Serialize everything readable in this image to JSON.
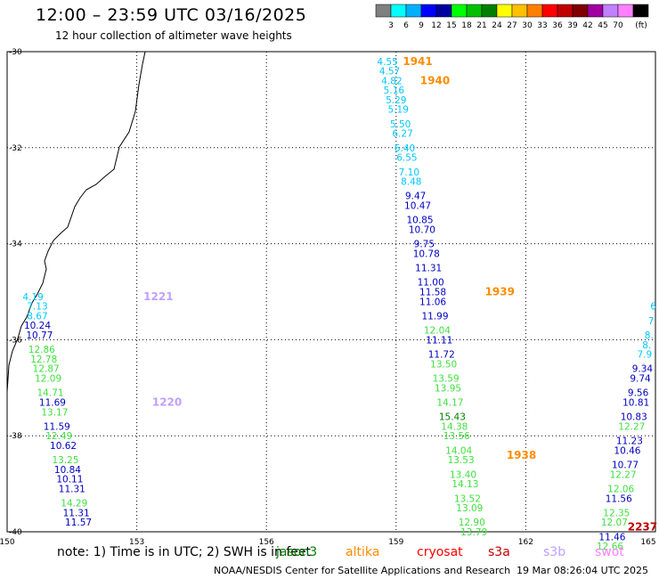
{
  "header": {
    "title": "12:00 – 23:59 UTC 03/16/2025",
    "subtitle": "12 hour collection of altimeter wave heights"
  },
  "colorbar": {
    "labels": [
      "3",
      "6",
      "9",
      "12",
      "15",
      "18",
      "21",
      "24",
      "27",
      "30",
      "33",
      "36",
      "39",
      "42",
      "45",
      "70",
      "(ft)"
    ],
    "colors": [
      "#808080",
      "#00ffff",
      "#00b0ff",
      "#0000ff",
      "#0000a0",
      "#00ff00",
      "#00c000",
      "#008000",
      "#ffff00",
      "#ffc000",
      "#ff8000",
      "#ff0000",
      "#c00000",
      "#800000",
      "#a000a0",
      "#c080ff",
      "#ff80ff",
      "#000000"
    ]
  },
  "axes": {
    "x_ticks": [
      "150",
      "153",
      "156",
      "159",
      "162",
      "165"
    ],
    "y_ticks": [
      "-30",
      "-32",
      "-34",
      "-36",
      "-38",
      "-40"
    ],
    "xlim": [
      150,
      165
    ],
    "ylim": [
      -40,
      -30
    ]
  },
  "footer": {
    "note": "note: 1) Time is in UTC; 2) SWH is in feet",
    "credit": "NOAA/NESDIS Center for Satellite Applications and Research",
    "timestamp": "19 Mar 08:26:04 UTC 2025"
  },
  "satellites": [
    {
      "name": "jason3",
      "color": "#008000"
    },
    {
      "name": "altika",
      "color": "#ff8c00"
    },
    {
      "name": "cryosat",
      "color": "#ff0000"
    },
    {
      "name": "s3a",
      "color": "#c00000"
    },
    {
      "name": "s3b",
      "color": "#c0a0ff"
    },
    {
      "name": "swot",
      "color": "#ff80ff"
    }
  ],
  "tracks": [
    {
      "sat": "s3b",
      "times": [
        {
          "label": "1221",
          "lon": 153.5,
          "lat": -35.1
        },
        {
          "label": "1220",
          "lon": 153.7,
          "lat": -37.3
        }
      ],
      "points": [
        {
          "lon": 150.6,
          "lat": -35.1,
          "v": "4.19"
        },
        {
          "lon": 150.7,
          "lat": -35.3,
          "v": "7.13"
        },
        {
          "lon": 150.7,
          "lat": -35.5,
          "v": "8.67"
        },
        {
          "lon": 150.7,
          "lat": -35.7,
          "v": "10.24"
        },
        {
          "lon": 150.75,
          "lat": -35.9,
          "v": "10.77"
        },
        {
          "lon": 150.8,
          "lat": -36.2,
          "v": "12.86"
        },
        {
          "lon": 150.85,
          "lat": -36.4,
          "v": "12.78"
        },
        {
          "lon": 150.9,
          "lat": -36.6,
          "v": "12.87"
        },
        {
          "lon": 150.95,
          "lat": -36.8,
          "v": "12.09"
        },
        {
          "lon": 151.0,
          "lat": -37.1,
          "v": "14.71"
        },
        {
          "lon": 151.05,
          "lat": -37.3,
          "v": "11.69"
        },
        {
          "lon": 151.1,
          "lat": -37.5,
          "v": "13.17"
        },
        {
          "lon": 151.15,
          "lat": -37.8,
          "v": "11.59"
        },
        {
          "lon": 151.2,
          "lat": -38.0,
          "v": "12.49"
        },
        {
          "lon": 151.3,
          "lat": -38.2,
          "v": "10.62"
        },
        {
          "lon": 151.35,
          "lat": -38.5,
          "v": "13.25"
        },
        {
          "lon": 151.4,
          "lat": -38.7,
          "v": "10.84"
        },
        {
          "lon": 151.45,
          "lat": -38.9,
          "v": "10.11"
        },
        {
          "lon": 151.5,
          "lat": -39.1,
          "v": "11.31"
        },
        {
          "lon": 151.55,
          "lat": -39.4,
          "v": "14.29"
        },
        {
          "lon": 151.6,
          "lat": -39.6,
          "v": "11.31"
        },
        {
          "lon": 151.65,
          "lat": -39.8,
          "v": "11.57"
        }
      ]
    },
    {
      "sat": "altika",
      "times": [
        {
          "label": "1941",
          "lon": 159.5,
          "lat": -30.2
        },
        {
          "label": "1940",
          "lon": 159.9,
          "lat": -30.6
        },
        {
          "label": "1939",
          "lon": 161.4,
          "lat": -35.0
        },
        {
          "label": "1938",
          "lon": 161.9,
          "lat": -38.4
        }
      ],
      "points": [
        {
          "lon": 158.8,
          "lat": -30.2,
          "v": "4.55"
        },
        {
          "lon": 158.85,
          "lat": -30.4,
          "v": "4.57"
        },
        {
          "lon": 158.9,
          "lat": -30.6,
          "v": "4.82"
        },
        {
          "lon": 158.95,
          "lat": -30.8,
          "v": "5.16"
        },
        {
          "lon": 159.0,
          "lat": -31.0,
          "v": "5.29"
        },
        {
          "lon": 159.05,
          "lat": -31.2,
          "v": "5.19"
        },
        {
          "lon": 159.1,
          "lat": -31.5,
          "v": "5.50"
        },
        {
          "lon": 159.15,
          "lat": -31.7,
          "v": "6.27"
        },
        {
          "lon": 159.2,
          "lat": -32.0,
          "v": "6.40"
        },
        {
          "lon": 159.25,
          "lat": -32.2,
          "v": "6.55"
        },
        {
          "lon": 159.3,
          "lat": -32.5,
          "v": "7.10"
        },
        {
          "lon": 159.35,
          "lat": -32.7,
          "v": "8.48"
        },
        {
          "lon": 159.45,
          "lat": -33.0,
          "v": "9.47"
        },
        {
          "lon": 159.5,
          "lat": -33.2,
          "v": "10.47"
        },
        {
          "lon": 159.55,
          "lat": -33.5,
          "v": "10.85"
        },
        {
          "lon": 159.6,
          "lat": -33.7,
          "v": "10.70"
        },
        {
          "lon": 159.65,
          "lat": -34.0,
          "v": "9.75"
        },
        {
          "lon": 159.7,
          "lat": -34.2,
          "v": "10.78"
        },
        {
          "lon": 159.75,
          "lat": -34.5,
          "v": "11.31"
        },
        {
          "lon": 159.8,
          "lat": -34.8,
          "v": "11.00"
        },
        {
          "lon": 159.85,
          "lat": -35.0,
          "v": "11.58"
        },
        {
          "lon": 159.85,
          "lat": -35.2,
          "v": "11.06"
        },
        {
          "lon": 159.9,
          "lat": -35.5,
          "v": "11.99"
        },
        {
          "lon": 159.95,
          "lat": -35.8,
          "v": "12.04"
        },
        {
          "lon": 160.0,
          "lat": -36.0,
          "v": "11.11"
        },
        {
          "lon": 160.05,
          "lat": -36.3,
          "v": "11.72"
        },
        {
          "lon": 160.1,
          "lat": -36.5,
          "v": "13.50"
        },
        {
          "lon": 160.15,
          "lat": -36.8,
          "v": "13.59"
        },
        {
          "lon": 160.2,
          "lat": -37.0,
          "v": "13.95"
        },
        {
          "lon": 160.25,
          "lat": -37.3,
          "v": "14.17"
        },
        {
          "lon": 160.3,
          "lat": -37.6,
          "v": "15.43"
        },
        {
          "lon": 160.35,
          "lat": -37.8,
          "v": "14.38"
        },
        {
          "lon": 160.4,
          "lat": -38.0,
          "v": "13.56"
        },
        {
          "lon": 160.45,
          "lat": -38.3,
          "v": "14.04"
        },
        {
          "lon": 160.5,
          "lat": -38.5,
          "v": "13.53"
        },
        {
          "lon": 160.55,
          "lat": -38.8,
          "v": "13.40"
        },
        {
          "lon": 160.6,
          "lat": -39.0,
          "v": "14.13"
        },
        {
          "lon": 160.65,
          "lat": -39.3,
          "v": "13.52"
        },
        {
          "lon": 160.7,
          "lat": -39.5,
          "v": "13.09"
        },
        {
          "lon": 160.75,
          "lat": -39.8,
          "v": "12.90"
        },
        {
          "lon": 160.8,
          "lat": -40.0,
          "v": "13.79"
        }
      ]
    },
    {
      "sat": "s3a",
      "times": [
        {
          "label": "2237",
          "lon": 164.7,
          "lat": -39.9
        }
      ],
      "points": [
        {
          "lon": 164.95,
          "lat": -35.3,
          "v": "6"
        },
        {
          "lon": 164.9,
          "lat": -35.6,
          "v": "7"
        },
        {
          "lon": 164.85,
          "lat": -35.9,
          "v": "8."
        },
        {
          "lon": 164.8,
          "lat": -36.1,
          "v": "8."
        },
        {
          "lon": 164.75,
          "lat": -36.3,
          "v": "7.9"
        },
        {
          "lon": 164.7,
          "lat": -36.6,
          "v": "9.34"
        },
        {
          "lon": 164.65,
          "lat": -36.8,
          "v": "9.74"
        },
        {
          "lon": 164.6,
          "lat": -37.1,
          "v": "9.56"
        },
        {
          "lon": 164.55,
          "lat": -37.3,
          "v": "10.81"
        },
        {
          "lon": 164.5,
          "lat": -37.6,
          "v": "10.83"
        },
        {
          "lon": 164.45,
          "lat": -37.8,
          "v": "12.27"
        },
        {
          "lon": 164.4,
          "lat": -38.1,
          "v": "11.23"
        },
        {
          "lon": 164.35,
          "lat": -38.3,
          "v": "10.46"
        },
        {
          "lon": 164.3,
          "lat": -38.6,
          "v": "10.77"
        },
        {
          "lon": 164.25,
          "lat": -38.8,
          "v": "12.27"
        },
        {
          "lon": 164.2,
          "lat": -39.1,
          "v": "12.06"
        },
        {
          "lon": 164.15,
          "lat": -39.3,
          "v": "11.56"
        },
        {
          "lon": 164.1,
          "lat": -39.6,
          "v": "12.35"
        },
        {
          "lon": 164.05,
          "lat": -39.8,
          "v": "12.07"
        },
        {
          "lon": 164.0,
          "lat": -40.1,
          "v": "11.46"
        },
        {
          "lon": 163.95,
          "lat": -40.3,
          "v": "12.66"
        }
      ]
    }
  ]
}
